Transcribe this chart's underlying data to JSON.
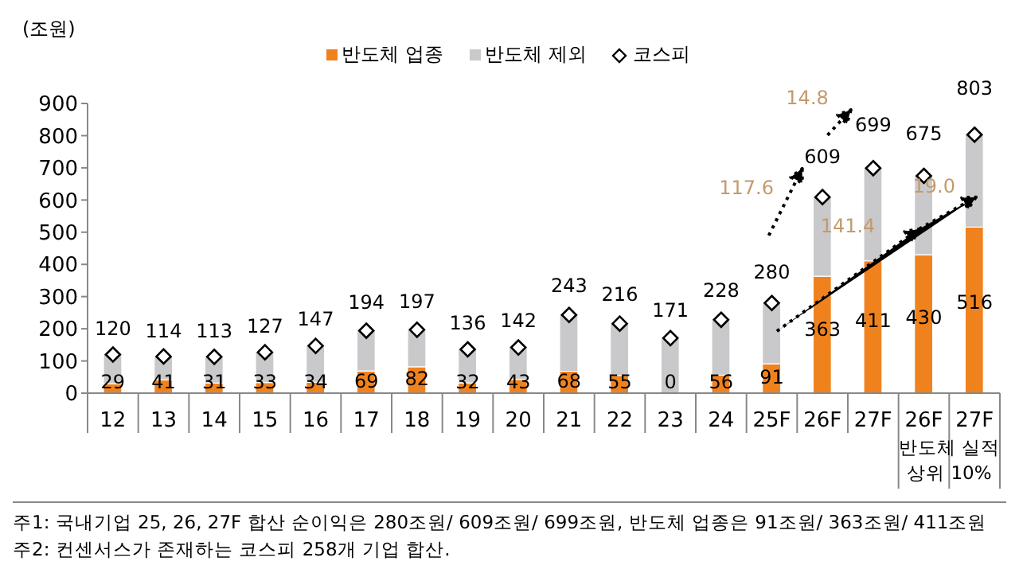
{
  "chart_data": {
    "type": "bar",
    "stacked": true,
    "ylabel": "(조원)",
    "categories": [
      "12",
      "13",
      "14",
      "15",
      "16",
      "17",
      "18",
      "19",
      "20",
      "21",
      "22",
      "23",
      "24",
      "25F",
      "26F",
      "27F",
      "26F",
      "27F"
    ],
    "series": [
      {
        "name": "반도체 업종",
        "color": "#f0821e",
        "values": [
          29,
          41,
          31,
          33,
          34,
          69,
          82,
          32,
          43,
          68,
          55,
          0,
          56,
          91,
          363,
          411,
          430,
          516
        ],
        "value_labels": [
          "29",
          "41",
          "31",
          "33",
          "34",
          "69",
          "82",
          "32",
          "43",
          "68",
          "55",
          "0",
          "56",
          "91",
          "363",
          "411",
          "430",
          "516"
        ]
      },
      {
        "name": "반도체 제외",
        "color": "#c9c9cb",
        "values": [
          91,
          73,
          82,
          94,
          113,
          125,
          115,
          104,
          99,
          175,
          161,
          171,
          172,
          189,
          246,
          288,
          245,
          287
        ]
      },
      {
        "name": "코스피",
        "type": "scatter",
        "marker": "diamond",
        "color": "#000000",
        "values": [
          120,
          114,
          113,
          127,
          147,
          194,
          197,
          136,
          142,
          243,
          216,
          171,
          228,
          280,
          609,
          699,
          675,
          803
        ],
        "value_labels": [
          "120",
          "114",
          "113",
          "127",
          "147",
          "194",
          "197",
          "136",
          "142",
          "243",
          "216",
          "171",
          "228",
          "280",
          "609",
          "699",
          "675",
          "803"
        ]
      }
    ],
    "ylim": [
      0,
      900
    ],
    "yticks": [
      0,
      100,
      200,
      300,
      400,
      500,
      600,
      700,
      800,
      900
    ],
    "grid": false,
    "legend": "top",
    "annotations": [
      "117.6",
      "14.8",
      "141.4",
      {
        "text": "19.0",
        "y": 511
      },
      "반도체 실적 상위 10%",
      "주1: 국내기업 25, 26, 27F 합산 순이익은 280조원/ 609조원/ 699조원, 반도체 업종은 91조원/ 363조원/ 411조원",
      "주2: 컨센서스가 존재하는 코스피 258개 기업 합산."
    ]
  }
}
